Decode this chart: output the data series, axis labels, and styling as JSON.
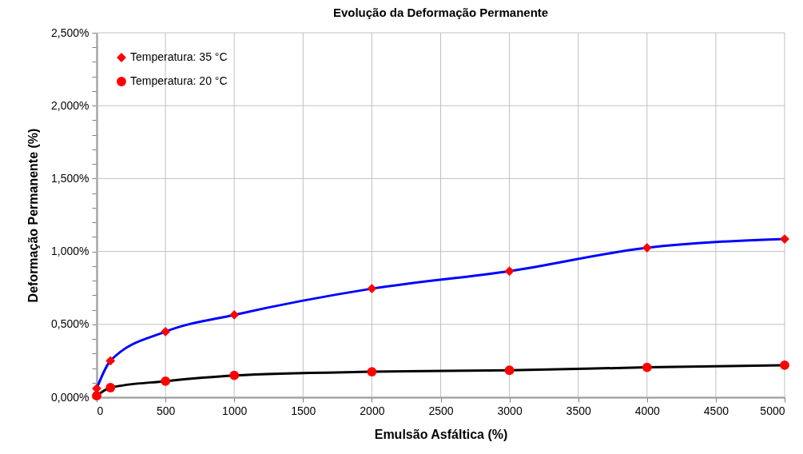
{
  "chart_data": {
    "type": "line",
    "title": "Evolução da Deformação Permanente",
    "xlabel": "Emulsão Asfáltica (%)",
    "ylabel": "Deformação Permanente (%)",
    "x": [
      0,
      100,
      500,
      1000,
      2000,
      3000,
      4000,
      5000
    ],
    "series": [
      {
        "name": "Temperatura: 35 °C",
        "color": "#0000ff",
        "marker": "diamond",
        "values": [
          0.06,
          0.25,
          0.45,
          0.565,
          0.745,
          0.865,
          1.025,
          1.085
        ]
      },
      {
        "name": "Temperatura: 20 °C",
        "color": "#000000",
        "marker": "circle",
        "values": [
          0.01,
          0.066,
          0.11,
          0.15,
          0.175,
          0.185,
          0.205,
          0.22
        ]
      }
    ],
    "xlim": [
      0,
      5000
    ],
    "xticks": [
      0,
      500,
      1000,
      1500,
      2000,
      2500,
      3000,
      3500,
      4000,
      4500,
      5000
    ],
    "ylim": [
      0,
      2.5
    ],
    "yticks": [
      {
        "value": 0,
        "label": "0,000%"
      },
      {
        "value": 0.1,
        "label": null
      },
      {
        "value": 0.2,
        "label": null
      },
      {
        "value": 0.3,
        "label": null
      },
      {
        "value": 0.4,
        "label": null
      },
      {
        "value": 0.5,
        "label": "0,500%"
      },
      {
        "value": 0.6,
        "label": null
      },
      {
        "value": 0.7,
        "label": null
      },
      {
        "value": 0.8,
        "label": null
      },
      {
        "value": 0.9,
        "label": null
      },
      {
        "value": 1,
        "label": "1,000%"
      },
      {
        "value": 1.1,
        "label": null
      },
      {
        "value": 1.2,
        "label": null
      },
      {
        "value": 1.3,
        "label": null
      },
      {
        "value": 1.4,
        "label": null
      },
      {
        "value": 1.5,
        "label": "1,500%"
      },
      {
        "value": 1.6,
        "label": null
      },
      {
        "value": 1.7,
        "label": null
      },
      {
        "value": 1.8,
        "label": null
      },
      {
        "value": 1.9,
        "label": null
      },
      {
        "value": 2,
        "label": "2,000%"
      },
      {
        "value": 2.1,
        "label": null
      },
      {
        "value": 2.2,
        "label": null
      },
      {
        "value": 2.3,
        "label": null
      },
      {
        "value": 2.4,
        "label": null
      },
      {
        "value": 2.5,
        "label": "2,500%"
      }
    ],
    "grid": true,
    "legend": "top left",
    "line_style": "solid"
  }
}
